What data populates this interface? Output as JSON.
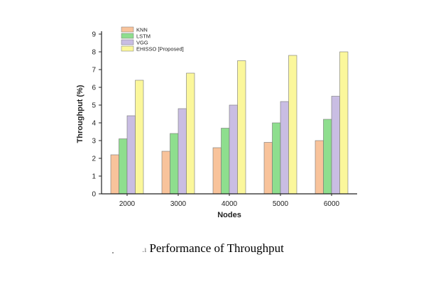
{
  "caption": {
    "mark": ".ı",
    "text": "Performance of Throughput"
  },
  "chart_data": {
    "type": "bar",
    "categories": [
      "2000",
      "3000",
      "4000",
      "5000",
      "6000"
    ],
    "series": [
      {
        "name": "KNN",
        "color": "#f8c39b",
        "values": [
          2.2,
          2.4,
          2.6,
          2.9,
          3.0
        ]
      },
      {
        "name": "LSTM",
        "color": "#8ede8e",
        "values": [
          3.1,
          3.4,
          3.7,
          4.0,
          4.2
        ]
      },
      {
        "name": "VGG",
        "color": "#c9bde3",
        "values": [
          4.4,
          4.8,
          5.0,
          5.2,
          5.5
        ]
      },
      {
        "name": "EHISSO [Proposed]",
        "color": "#fbf79b",
        "values": [
          6.4,
          6.8,
          7.5,
          7.8,
          8.0
        ]
      }
    ],
    "xlabel": "Nodes",
    "ylabel": "Throughput (%)",
    "ylim": [
      0,
      9
    ],
    "yticks": [
      0,
      1,
      2,
      3,
      4,
      5,
      6,
      7,
      8,
      9
    ],
    "grid": false,
    "legend_position": "top-left"
  }
}
